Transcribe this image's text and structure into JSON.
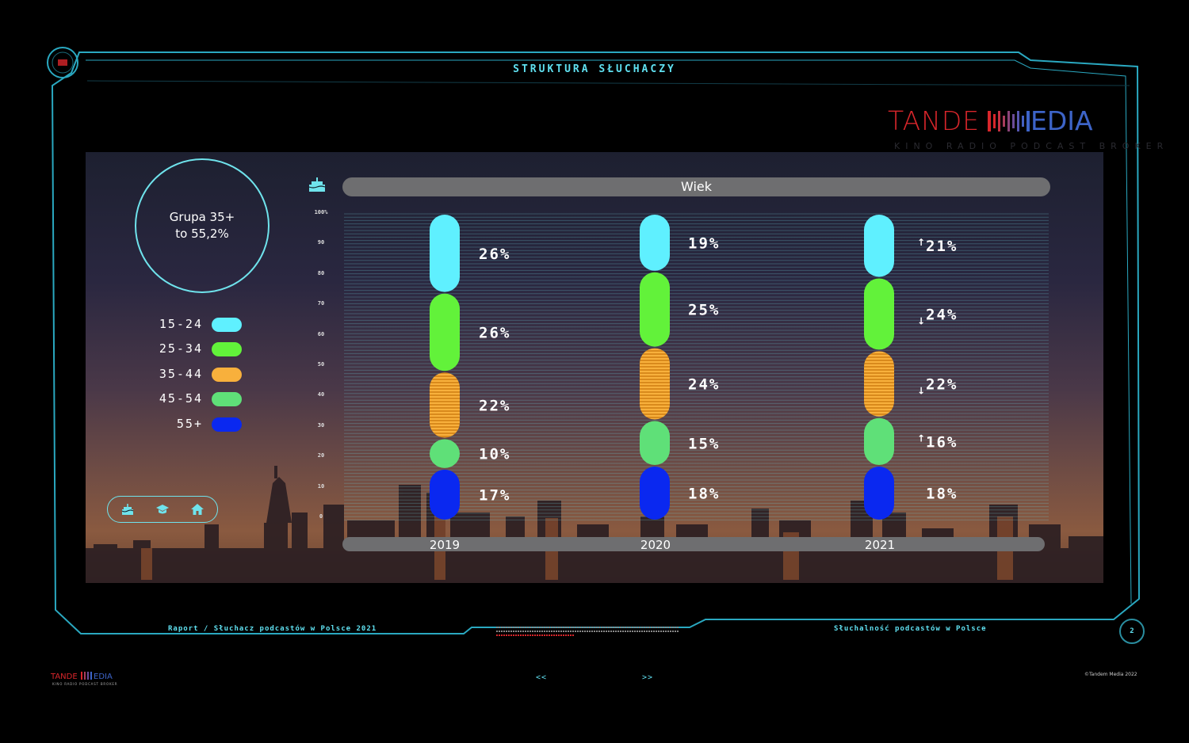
{
  "title": "STRUKTURA SŁUCHACZY",
  "logo": {
    "left": "TANDE",
    "right": "EDIA",
    "tagline": "KINO RADIO PODCAST BROKER"
  },
  "summary": {
    "line1": "Grupa 35+",
    "line2": "to 55,2%"
  },
  "legend": [
    {
      "label": "15-24",
      "color": "#5ff0ff"
    },
    {
      "label": "25-34",
      "color": "#62f23a"
    },
    {
      "label": "35-44",
      "color": "#f8b03c"
    },
    {
      "label": "45-54",
      "color": "#5fe078"
    },
    {
      "label": "55+",
      "color": "#0a28f0"
    }
  ],
  "icons": [
    "cake-icon",
    "graduation-cap-icon",
    "home-icon"
  ],
  "chart_data": {
    "type": "bar",
    "stacked": true,
    "title": "Wiek",
    "categories": [
      "2019",
      "2020",
      "2021"
    ],
    "ylim": [
      0,
      100
    ],
    "yticks": [
      "0",
      "10",
      "20",
      "30",
      "40",
      "50",
      "60",
      "70",
      "80",
      "90",
      "100%"
    ],
    "series": [
      {
        "name": "55+",
        "values": [
          17,
          18,
          18
        ],
        "labels": [
          "17%",
          "18%",
          "18%"
        ],
        "trend": [
          "",
          "",
          ""
        ]
      },
      {
        "name": "45-54",
        "values": [
          10,
          15,
          16
        ],
        "labels": [
          "10%",
          "15%",
          "16%"
        ],
        "trend": [
          "",
          "",
          "up"
        ]
      },
      {
        "name": "35-44",
        "values": [
          22,
          24,
          22
        ],
        "labels": [
          "22%",
          "24%",
          "22%"
        ],
        "trend": [
          "",
          "",
          "down"
        ]
      },
      {
        "name": "25-34",
        "values": [
          26,
          25,
          24
        ],
        "labels": [
          "26%",
          "25%",
          "24%"
        ],
        "trend": [
          "",
          "",
          "down"
        ]
      },
      {
        "name": "15-24",
        "values": [
          26,
          19,
          21
        ],
        "labels": [
          "26%",
          "19%",
          "21%"
        ],
        "trend": [
          "",
          "",
          "up"
        ]
      }
    ]
  },
  "footer": {
    "left": "Raport / Słuchacz podcastów w Polsce 2021",
    "right": "Słuchalność podcastów w Polsce",
    "page": "2",
    "prev": "<<",
    "next": ">>",
    "copyright": "©Tandem Media 2022"
  }
}
